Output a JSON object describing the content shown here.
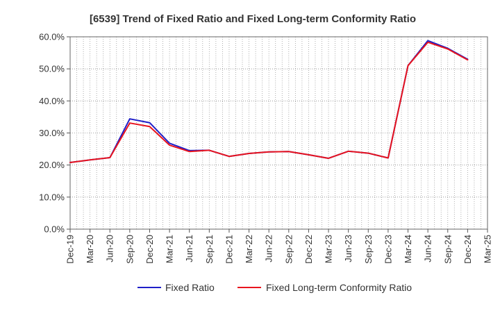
{
  "chart_data": {
    "type": "line",
    "title": "[6539]  Trend of Fixed Ratio and Fixed Long-term Conformity Ratio",
    "xlabel": "",
    "ylabel": "",
    "categories": [
      "Dec-19",
      "Mar-20",
      "Jun-20",
      "Sep-20",
      "Dec-20",
      "Mar-21",
      "Jun-21",
      "Sep-21",
      "Dec-21",
      "Mar-22",
      "Jun-22",
      "Sep-22",
      "Dec-22",
      "Mar-23",
      "Jun-23",
      "Sep-23",
      "Dec-23",
      "Mar-24",
      "Jun-24",
      "Sep-24",
      "Dec-24",
      "Mar-25"
    ],
    "y_ticks": [
      "0.0%",
      "10.0%",
      "20.0%",
      "30.0%",
      "40.0%",
      "50.0%",
      "60.0%"
    ],
    "ylim": [
      0,
      60
    ],
    "grid": true,
    "legend_position": "bottom",
    "series": [
      {
        "name": "Fixed Ratio",
        "color": "#1f1fc8",
        "values": [
          20.8,
          21.6,
          22.3,
          34.4,
          33.2,
          26.8,
          24.5,
          24.6,
          22.7,
          23.6,
          24.1,
          24.2,
          23.2,
          22.1,
          24.3,
          23.7,
          22.2,
          51.0,
          58.8,
          56.4,
          53.0,
          null
        ]
      },
      {
        "name": "Fixed Long-term Conformity Ratio",
        "color": "#e8141e",
        "values": [
          20.8,
          21.6,
          22.3,
          33.1,
          32.0,
          26.2,
          24.2,
          24.6,
          22.7,
          23.6,
          24.1,
          24.2,
          23.2,
          22.1,
          24.3,
          23.7,
          22.2,
          51.0,
          58.3,
          56.2,
          52.8,
          null
        ]
      }
    ]
  }
}
